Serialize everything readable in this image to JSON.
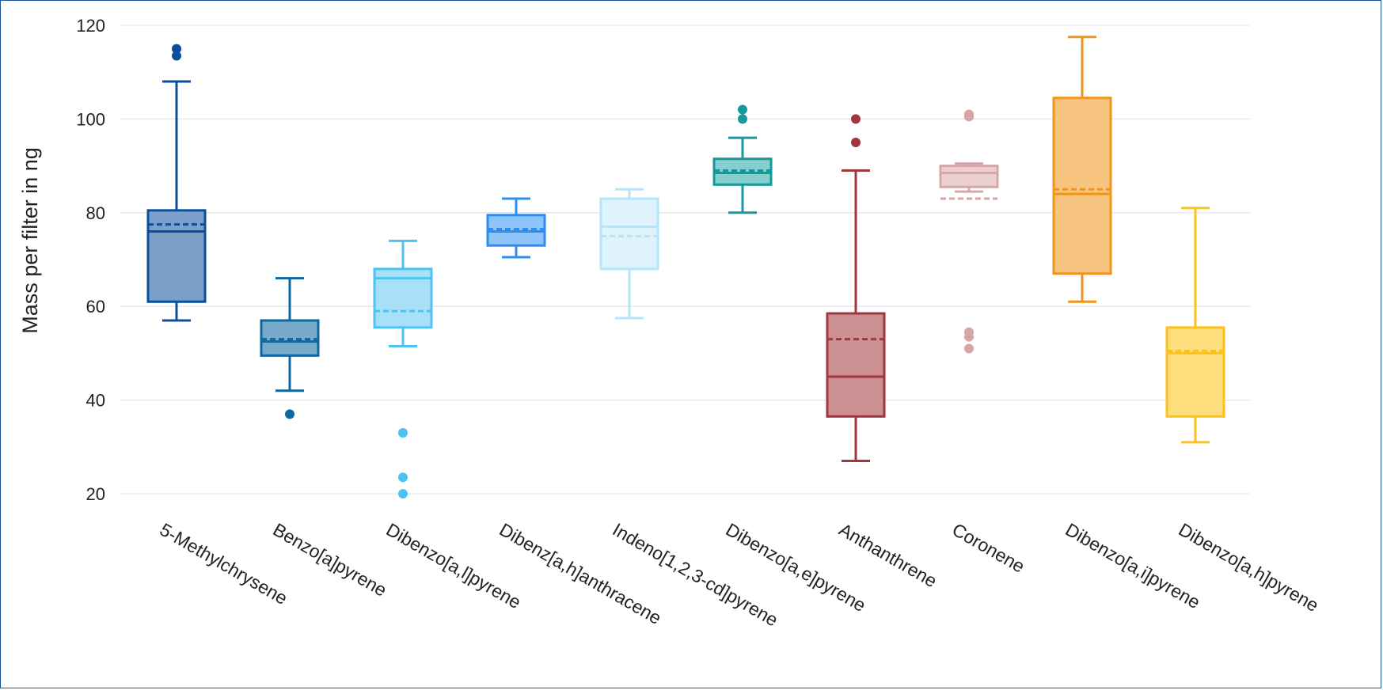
{
  "chart_data": {
    "type": "box",
    "ylabel": "Mass per filter in ng",
    "xlabel": "",
    "ylim": [
      15,
      121
    ],
    "yticks": [
      20,
      40,
      60,
      80,
      100,
      120
    ],
    "grid": true,
    "legend": "none",
    "dashed_line": "mean",
    "series": [
      {
        "category": "5-Methylchrysene",
        "color": "#0b4f9c",
        "fill": "#7a9fc8",
        "min": 57,
        "q1": 61,
        "median": 76,
        "mean": 77.5,
        "q3": 80.5,
        "max": 108,
        "outliers": [
          113.5,
          115
        ]
      },
      {
        "category": "Benzo[a]pyrene",
        "color": "#0d68a0",
        "fill": "#78aacb",
        "min": 42,
        "q1": 49.5,
        "median": 52.5,
        "mean": 53,
        "q3": 57,
        "max": 66,
        "outliers": [
          37
        ]
      },
      {
        "category": "Dibenzo[a,l]pyrene",
        "color": "#4cc3f2",
        "fill": "#a8e0f8",
        "min": 51.5,
        "q1": 55.5,
        "median": 66,
        "mean": 59,
        "q3": 68,
        "max": 74,
        "outliers": [
          33,
          23.5,
          20
        ]
      },
      {
        "category": "Dibenz[a,h]anthracene",
        "color": "#2e8ef0",
        "fill": "#8ec4fa",
        "min": 70.5,
        "q1": 73,
        "median": 76,
        "mean": 76.5,
        "q3": 79.5,
        "max": 83,
        "outliers": []
      },
      {
        "category": "Indeno[1,2,3-cd]pyrene",
        "color": "#b6e4fb",
        "fill": "#dff3fd",
        "min": 57.5,
        "q1": 68,
        "median": 77,
        "mean": 75,
        "q3": 83,
        "max": 85,
        "outliers": []
      },
      {
        "category": "Dibenzo[a,e]pyrene",
        "color": "#16999b",
        "fill": "#87cfcf",
        "min": 80,
        "q1": 86,
        "median": 88.5,
        "mean": 89,
        "q3": 91.5,
        "max": 96,
        "outliers": [
          100,
          102
        ]
      },
      {
        "category": "Anthanthrene",
        "color": "#a1373c",
        "fill": "#cc8f92",
        "min": 27,
        "q1": 36.5,
        "median": 45,
        "mean": 53,
        "q3": 58.5,
        "max": 89,
        "outliers": [
          95,
          100
        ]
      },
      {
        "category": "Coronene",
        "color": "#d8a6a6",
        "fill": "#ecd0d0",
        "min": 84.5,
        "q1": 85.5,
        "median": 88.5,
        "mean": 83,
        "q3": 90,
        "max": 90.5,
        "outliers": [
          51,
          53.5,
          54.5,
          100.5,
          101
        ]
      },
      {
        "category": "Dibenzo[a,i]pyrene",
        "color": "#f0951c",
        "fill": "#f7c57f",
        "min": 61,
        "q1": 67,
        "median": 84,
        "mean": 85,
        "q3": 104.5,
        "max": 117.5,
        "outliers": []
      },
      {
        "category": "Dibenzo[a,h]pyrene",
        "color": "#fbc21d",
        "fill": "#fcdf7c",
        "min": 31,
        "q1": 36.5,
        "median": 50,
        "mean": 50.5,
        "q3": 55.5,
        "max": 81,
        "outliers": []
      }
    ]
  }
}
